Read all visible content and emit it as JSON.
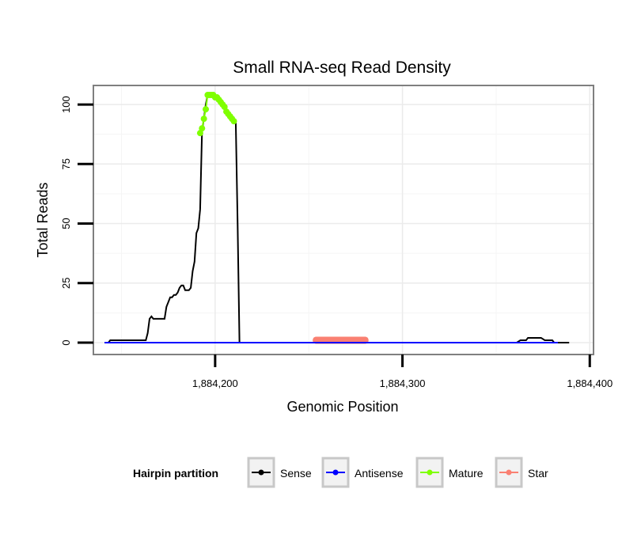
{
  "chart_data": {
    "type": "line",
    "title": "Small RNA-seq Read Density",
    "xlabel": "Genomic Position",
    "ylabel": "Total Reads",
    "xlim": [
      1884135,
      1884402
    ],
    "ylim": [
      -5,
      108
    ],
    "x_ticks": [
      1884200,
      1884300,
      1884400
    ],
    "x_tick_labels": [
      "1,884,200",
      "1,884,300",
      "1,884,400"
    ],
    "y_ticks": [
      0,
      25,
      50,
      75,
      100
    ],
    "y_tick_labels": [
      "0",
      "25",
      "50",
      "75",
      "100"
    ],
    "grid": true,
    "legend": {
      "title": "Hairpin partition",
      "position": "bottom",
      "items": [
        {
          "label": "Sense",
          "color": "#000000"
        },
        {
          "label": "Antisense",
          "color": "#0000ff"
        },
        {
          "label": "Mature",
          "color": "#7fff00"
        },
        {
          "label": "Star",
          "color": "#fa8072"
        }
      ]
    },
    "series": [
      {
        "name": "Sense",
        "color": "#000000",
        "x": [
          1884141,
          1884143,
          1884144,
          1884163,
          1884164,
          1884165,
          1884166,
          1884167,
          1884168,
          1884169,
          1884173,
          1884174,
          1884175,
          1884176,
          1884177,
          1884178,
          1884179,
          1884180,
          1884181,
          1884182,
          1884183,
          1884184,
          1884185,
          1884186,
          1884187,
          1884188,
          1884189,
          1884190,
          1884191,
          1884192,
          1884193,
          1884194,
          1884195,
          1884196,
          1884197,
          1884198,
          1884199,
          1884200,
          1884201,
          1884202,
          1884203,
          1884204,
          1884205,
          1884206,
          1884207,
          1884208,
          1884209,
          1884210,
          1884211,
          1884212,
          1884213,
          1884215,
          1884240,
          1884280,
          1884300,
          1884340,
          1884361,
          1884363,
          1884364,
          1884366,
          1884367,
          1884372,
          1884373,
          1884374,
          1884376,
          1884377,
          1884380,
          1884381,
          1884382,
          1884386,
          1884389
        ],
        "values": [
          0,
          0,
          1,
          1,
          4,
          10,
          11,
          10,
          10,
          10,
          10,
          15,
          17,
          19,
          19,
          20,
          20,
          21,
          23,
          24,
          24,
          22,
          22,
          22,
          23,
          30,
          34,
          46,
          48,
          56,
          89,
          94,
          100,
          104,
          104,
          104,
          104,
          103,
          103,
          102,
          101,
          100,
          99,
          98,
          97,
          96,
          95,
          94,
          93,
          50,
          0,
          0,
          0,
          0,
          0,
          0,
          0,
          1,
          1,
          1,
          2,
          2,
          2,
          2,
          1,
          1,
          1,
          0,
          0,
          0,
          0
        ]
      },
      {
        "name": "Antisense",
        "color": "#0000ff",
        "x": [
          1884141,
          1884215,
          1884359,
          1884362,
          1884380,
          1884383
        ],
        "values": [
          0,
          0,
          0,
          0,
          0,
          0
        ]
      },
      {
        "name": "Mature",
        "color": "#7fff00",
        "x": [
          1884192,
          1884193,
          1884194,
          1884195,
          1884196,
          1884197,
          1884198,
          1884199,
          1884200,
          1884201,
          1884202,
          1884203,
          1884204,
          1884205,
          1884206,
          1884207,
          1884208,
          1884209,
          1884210
        ],
        "values": [
          88,
          90,
          94,
          98,
          104,
          104,
          104,
          104,
          103,
          103,
          102,
          101,
          100,
          99,
          97,
          96,
          95,
          94,
          93
        ]
      },
      {
        "name": "Star",
        "color": "#fa8072",
        "x": [
          1884254,
          1884256,
          1884258,
          1884260,
          1884262,
          1884264,
          1884266,
          1884268,
          1884270,
          1884272,
          1884274,
          1884276,
          1884278,
          1884280
        ],
        "values": [
          1,
          1,
          1,
          1,
          1,
          1,
          1,
          1,
          1,
          1,
          1,
          1,
          1,
          1
        ]
      }
    ]
  }
}
